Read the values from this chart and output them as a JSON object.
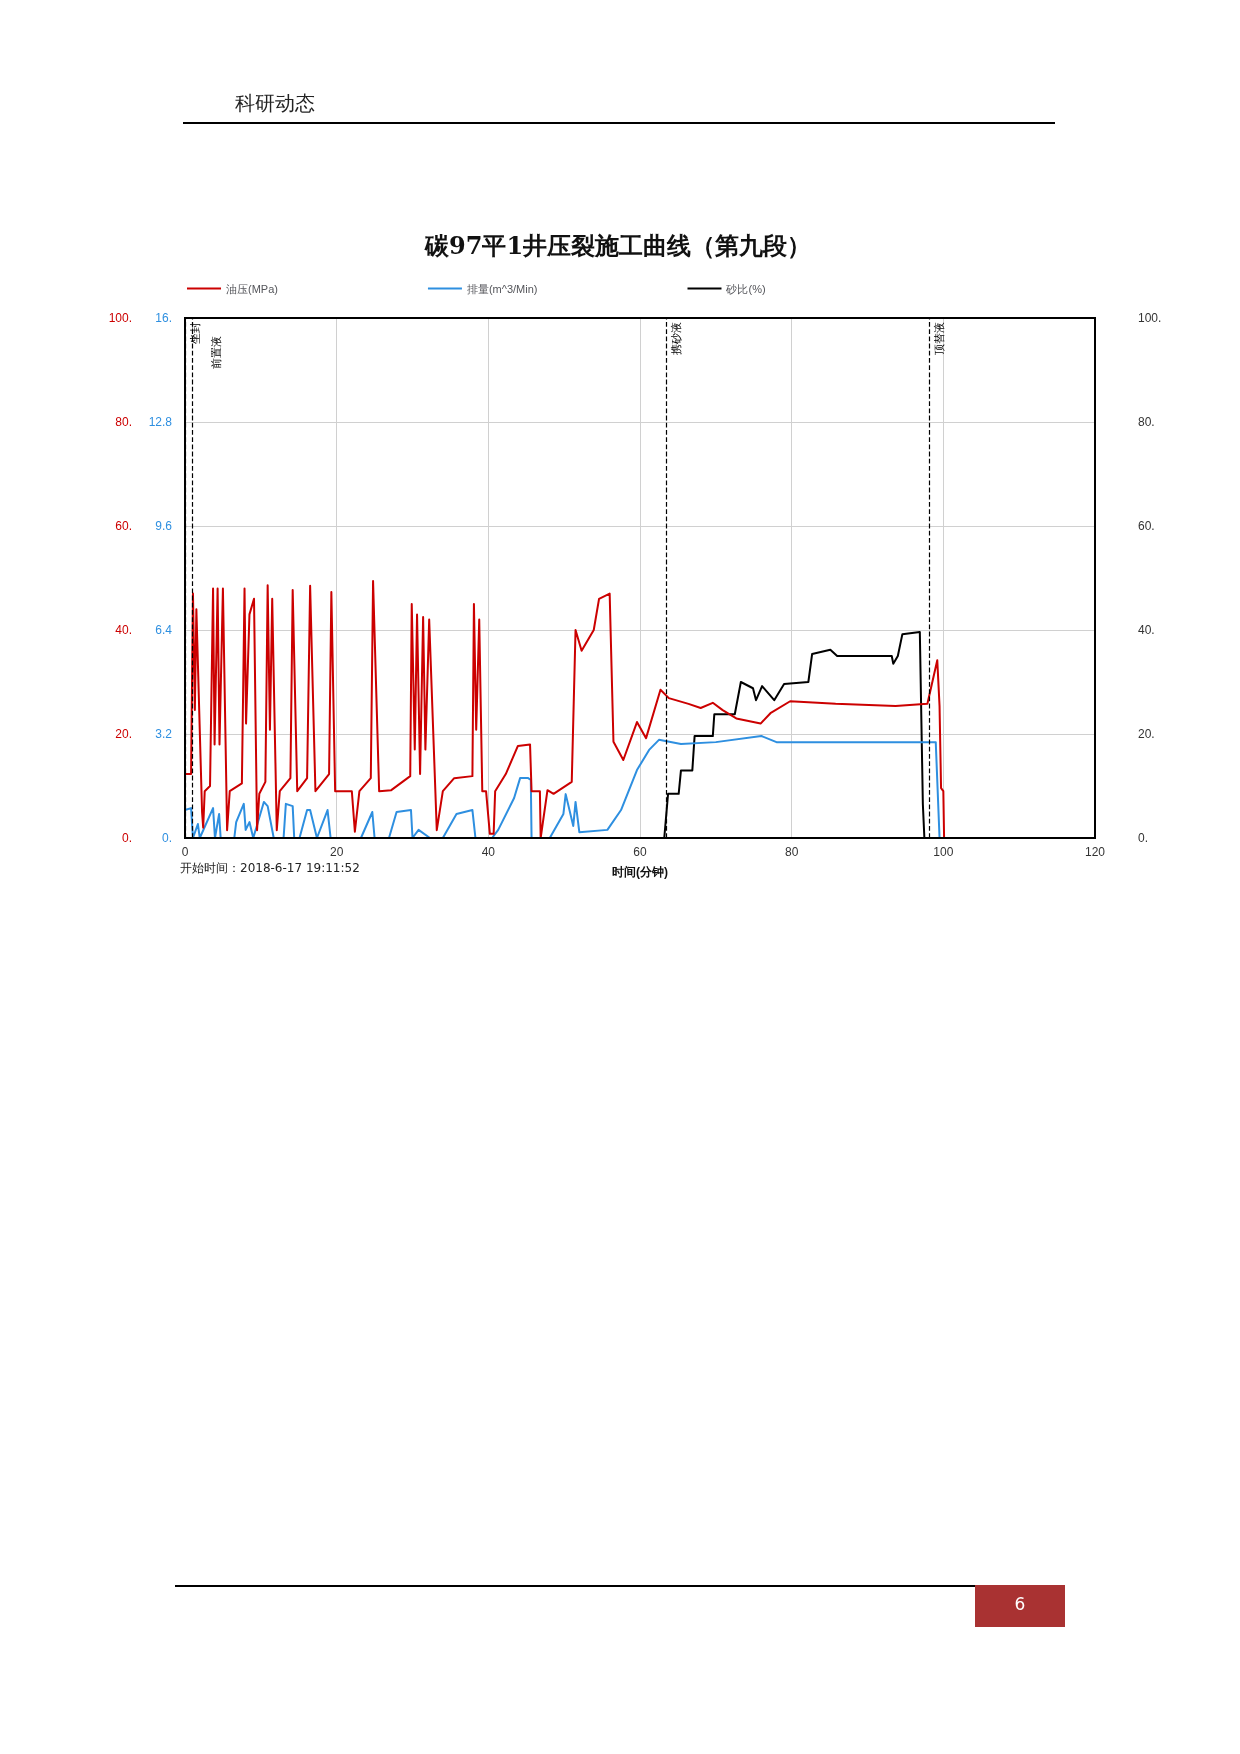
{
  "chart_data": {
    "type": "line",
    "title": "碳97平1井压裂施工曲线（第九段）",
    "xlabel": "时间(分钟)",
    "annotations": [
      "科研动态",
      "开始时间：2018-6-17 19:11:52",
      "6"
    ],
    "xlim": [
      0,
      120
    ],
    "xticks": [
      0,
      20,
      40,
      60,
      80,
      100,
      120
    ],
    "ylim": [
      0,
      100
    ],
    "yticks": [
      {
        "value": 0,
        "label": "0."
      },
      {
        "value": 20,
        "label": "20."
      },
      {
        "value": 40,
        "label": "40."
      },
      {
        "value": 60,
        "label": "60."
      },
      {
        "value": 80,
        "label": "80."
      },
      {
        "value": 100,
        "label": "100."
      }
    ],
    "y2lim": [
      0,
      16
    ],
    "y2ticks": [
      {
        "value": 0,
        "label": "0."
      },
      3.2,
      6.4,
      9.6,
      12.8,
      {
        "value": 16,
        "label": "16."
      }
    ],
    "y3lim": [
      0,
      100
    ],
    "y3ticks": [
      {
        "value": 0,
        "label": "0."
      },
      {
        "value": 20,
        "label": "20."
      },
      {
        "value": 40,
        "label": "40."
      },
      {
        "value": 60,
        "label": "60."
      },
      {
        "value": 80,
        "label": "80."
      },
      {
        "value": 100,
        "label": "100."
      }
    ],
    "grid": true,
    "legend": "top",
    "marker": "none",
    "line_style": "solid",
    "ref_lines": [
      {
        "axis": "x",
        "value": 0,
        "label": "坐封",
        "color": "#000000",
        "line_style": "dashed"
      },
      {
        "axis": "x",
        "value": 1,
        "label": "前置液",
        "color": "#000000",
        "line_style": "dashed"
      },
      {
        "axis": "x",
        "value": 63.5,
        "label": "携砂液",
        "color": "#000000",
        "line_style": "dashed"
      },
      {
        "axis": "x",
        "value": 98.2,
        "label": "顶替液",
        "color": "#000000",
        "line_style": "dashed"
      }
    ],
    "series": [
      {
        "name": "油压(MPa)",
        "color": "#cc0000",
        "x": [
          0,
          0.8,
          1.05,
          1.3,
          1.5,
          2.25,
          2.4,
          2.6,
          3.3,
          3.7,
          3.9,
          4.3,
          4.55,
          5.0,
          5.55,
          5.9,
          7.5,
          7.85,
          8.05,
          8.5,
          9.1,
          9.5,
          9.8,
          10.6,
          10.9,
          11.2,
          11.5,
          12.1,
          12.5,
          13.9,
          14.2,
          14.8,
          16.1,
          16.5,
          17.2,
          19,
          19.3,
          19.8,
          22,
          22.4,
          23,
          24.5,
          24.8,
          25.6,
          27.2,
          29.7,
          29.9,
          30.3,
          30.6,
          31,
          31.4,
          31.7,
          32.2,
          33.2,
          34,
          35.5,
          37.9,
          38.1,
          38.4,
          38.8,
          39.2,
          39.7,
          40.2,
          40.7,
          40.9,
          42.3,
          43.9,
          45.5,
          45.7,
          46.8,
          46.9,
          47.8,
          48.6,
          51,
          51.5,
          52.3,
          53.9,
          54.6,
          56,
          56.5,
          57.8,
          59.6,
          60.8,
          62.7,
          63.8,
          66.4,
          68,
          69.6,
          70.9,
          72.7,
          75.9,
          77.2,
          79.8,
          85.8,
          93.7,
          97.9,
          99.2,
          99.5,
          99.7,
          100,
          100.1
        ],
        "values": [
          12.3,
          12.3,
          47,
          24.6,
          44,
          5,
          2,
          9,
          10,
          48,
          18,
          48,
          18,
          48,
          1.5,
          9,
          10.5,
          48,
          22,
          43,
          46,
          1.5,
          8.5,
          10.8,
          48.6,
          20.8,
          46,
          1.5,
          9,
          11.5,
          47.7,
          9,
          11.5,
          48.5,
          9,
          12.3,
          47.3,
          9,
          9,
          1.2,
          9,
          11.5,
          49.4,
          9,
          9.2,
          11.9,
          45,
          17,
          43,
          12.3,
          42.5,
          17,
          42,
          1.5,
          9,
          11.5,
          11.9,
          45,
          20.8,
          42,
          9,
          9,
          0.8,
          0.8,
          9,
          12.3,
          17.7,
          18,
          9,
          9,
          0,
          9.2,
          8.5,
          10.8,
          40,
          36,
          40,
          46,
          47,
          18.5,
          15,
          22.3,
          19.2,
          28.5,
          26.9,
          25.8,
          25,
          26,
          24.6,
          23,
          22,
          24,
          26.3,
          25.8,
          25.4,
          25.8,
          34.2,
          25.4,
          9.6,
          9,
          0
        ]
      },
      {
        "name": "排量(m^3/Min)",
        "color": "#2e8fe0",
        "axis": "y2",
        "x": [
          0,
          0.8,
          1.05,
          1.7,
          1.95,
          3.7,
          3.95,
          4.5,
          4.7,
          6.5,
          6.75,
          7.75,
          8.0,
          8.5,
          9.0,
          10.4,
          10.9,
          11.7,
          13.0,
          13.3,
          14.2,
          14.4,
          15.1,
          16.1,
          16.5,
          17.4,
          18.8,
          19.2,
          23.2,
          24.7,
          25.0,
          26.9,
          27.9,
          29.8,
          30.0,
          30.8,
          32.3,
          34,
          35.8,
          37.9,
          38.3,
          40.5,
          41.3,
          43.4,
          44.2,
          45.2,
          45.6,
          45.7,
          48.1,
          49.9,
          50.2,
          51.2,
          51.5,
          52,
          55.7,
          57.5,
          59.6,
          61.2,
          62.5,
          65.4,
          70,
          76,
          78,
          85,
          99,
          99.5
        ],
        "values": [
          0.86,
          0.92,
          0,
          0.43,
          0,
          0.92,
          0,
          0.74,
          0,
          0,
          0.49,
          1.05,
          0.25,
          0.49,
          0,
          1.11,
          0.98,
          0,
          0,
          1.05,
          0.98,
          0,
          0,
          0.86,
          0.86,
          0,
          0.86,
          0,
          0,
          0.8,
          0,
          0,
          0.8,
          0.86,
          0,
          0.25,
          0,
          0,
          0.74,
          0.86,
          0,
          0,
          0.25,
          1.23,
          1.85,
          1.85,
          1.79,
          0,
          0,
          0.74,
          1.35,
          0.37,
          1.11,
          0.18,
          0.25,
          0.86,
          2.09,
          2.71,
          3.02,
          2.89,
          2.95,
          3.14,
          2.95,
          2.95,
          2.95,
          0
        ]
      },
      {
        "name": "砂比(%)",
        "color": "#000000",
        "axis": "y3",
        "x": [
          63.2,
          63.7,
          65.1,
          65.4,
          66.9,
          67.2,
          69.6,
          69.8,
          72.5,
          73.3,
          74.9,
          75.3,
          76.1,
          77.7,
          79,
          82.2,
          82.7,
          85.1,
          86,
          93.2,
          93.4,
          94,
          94.6,
          96.9,
          97.3,
          97.5
        ],
        "values": [
          0,
          8.5,
          8.5,
          13,
          13,
          19.6,
          19.6,
          23.8,
          23.8,
          30,
          28.8,
          26.5,
          29.2,
          26.5,
          29.6,
          30,
          35.4,
          36.2,
          35,
          35,
          33.5,
          35,
          39.2,
          39.6,
          6.5,
          0
        ]
      }
    ]
  }
}
